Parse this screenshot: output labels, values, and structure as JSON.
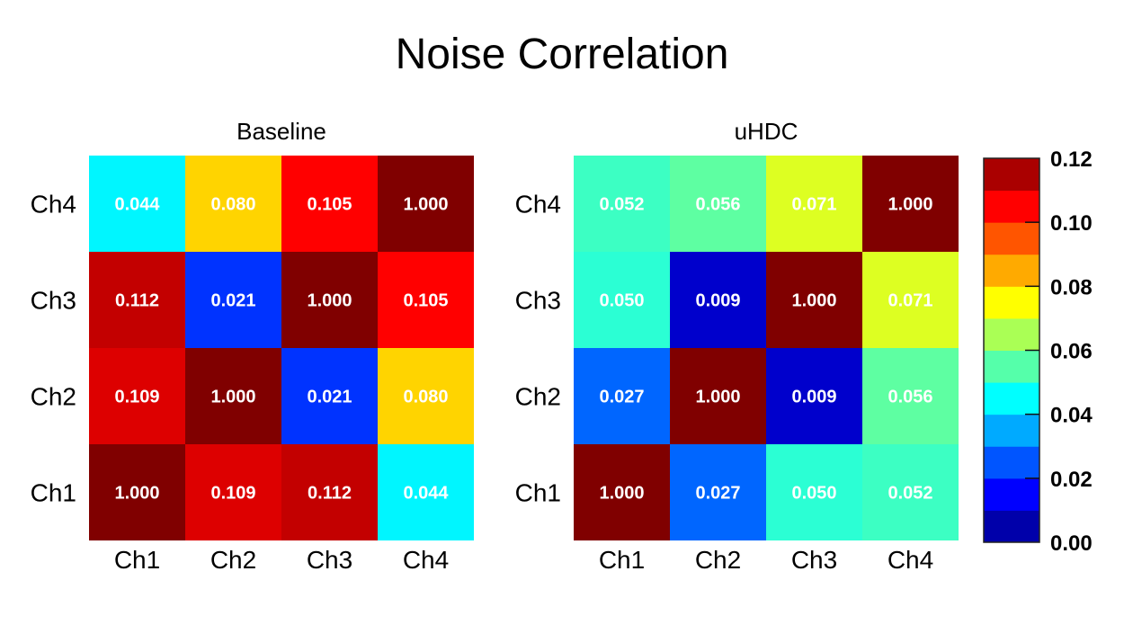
{
  "chart_data": {
    "type": "heatmap",
    "title": "Noise Correlation",
    "panels": [
      {
        "title": "Baseline",
        "x_labels": [
          "Ch1",
          "Ch2",
          "Ch3",
          "Ch4"
        ],
        "y_labels": [
          "Ch1",
          "Ch2",
          "Ch3",
          "Ch4"
        ],
        "values": [
          [
            1.0,
            0.109,
            0.112,
            0.044
          ],
          [
            0.109,
            1.0,
            0.021,
            0.08
          ],
          [
            0.112,
            0.021,
            1.0,
            0.105
          ],
          [
            0.044,
            0.08,
            0.105,
            1.0
          ]
        ]
      },
      {
        "title": "uHDC",
        "x_labels": [
          "Ch1",
          "Ch2",
          "Ch3",
          "Ch4"
        ],
        "y_labels": [
          "Ch1",
          "Ch2",
          "Ch3",
          "Ch4"
        ],
        "values": [
          [
            1.0,
            0.027,
            0.05,
            0.052
          ],
          [
            0.027,
            1.0,
            0.009,
            0.056
          ],
          [
            0.05,
            0.009,
            1.0,
            0.071
          ],
          [
            0.052,
            0.056,
            0.071,
            1.0
          ]
        ]
      }
    ],
    "colorbar": {
      "colormap": "jet",
      "range": [
        0.0,
        0.12
      ],
      "levels": 12,
      "over_color": "#800000",
      "ticks": [
        "0.00",
        "0.02",
        "0.04",
        "0.06",
        "0.08",
        "0.10",
        "0.12"
      ]
    }
  }
}
